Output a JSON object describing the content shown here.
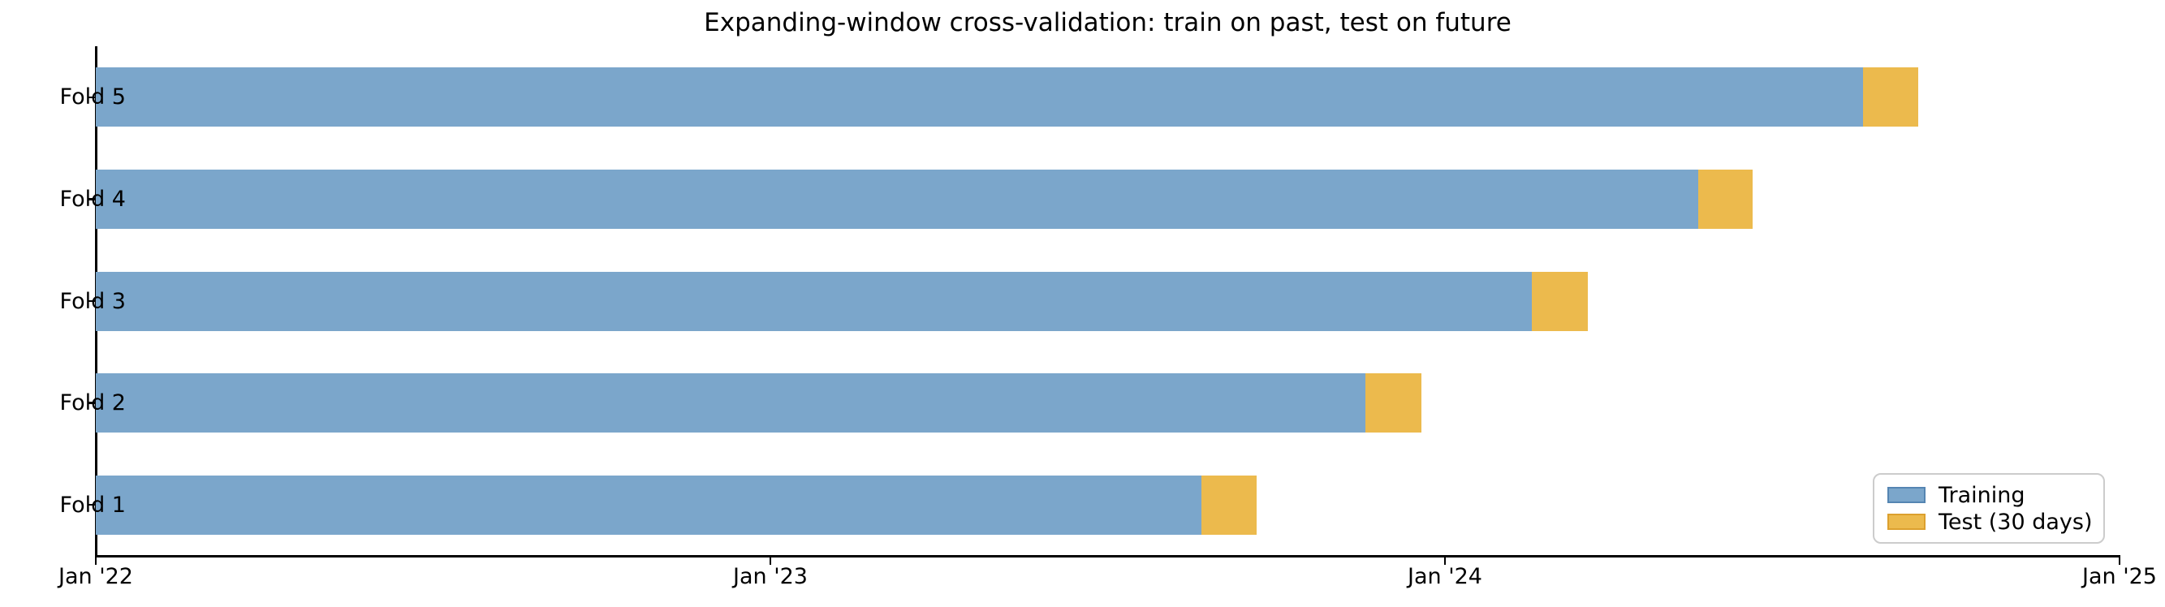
{
  "chart_data": {
    "type": "bar",
    "orientation": "horizontal",
    "stacked": true,
    "title": "Expanding-window cross-validation: train on past, test on future",
    "xlabel": "",
    "ylabel": "",
    "grid": false,
    "legend_position": "lower right",
    "x_axis": {
      "unit": "years since Jan 2022",
      "range_years": [
        0,
        3
      ],
      "ticks": [
        {
          "label": "Jan '22",
          "year": 0
        },
        {
          "label": "Jan '23",
          "year": 1
        },
        {
          "label": "Jan '24",
          "year": 2
        },
        {
          "label": "Jan '25",
          "year": 3
        }
      ]
    },
    "categories_top_to_bottom": [
      "Fold 5",
      "Fold 4",
      "Fold 3",
      "Fold 2",
      "Fold 1"
    ],
    "series": [
      {
        "name": "Training",
        "color": "#7BA6CB"
      },
      {
        "name": "Test (30 days)",
        "color": "#ECBA4D",
        "test_window_days": 30
      }
    ],
    "folds": [
      {
        "label": "Fold 5",
        "train_start": 0,
        "train_end": 2.62,
        "test_start": 2.62,
        "test_end": 2.702
      },
      {
        "label": "Fold 4",
        "train_start": 0,
        "train_end": 2.375,
        "test_start": 2.375,
        "test_end": 2.456
      },
      {
        "label": "Fold 3",
        "train_start": 0,
        "train_end": 2.129,
        "test_start": 2.129,
        "test_end": 2.212
      },
      {
        "label": "Fold 2",
        "train_start": 0,
        "train_end": 1.882,
        "test_start": 1.882,
        "test_end": 1.965
      },
      {
        "label": "Fold 1",
        "train_start": 0,
        "train_end": 1.639,
        "test_start": 1.639,
        "test_end": 1.721
      }
    ]
  },
  "legend": {
    "items": [
      {
        "label": "Training",
        "fill": "#7BA6CB",
        "edge": "#5585B2"
      },
      {
        "label": "Test (30 days)",
        "fill": "#ECBA4D",
        "edge": "#DCA02E"
      }
    ]
  },
  "colors": {
    "training_fill": "#7BA6CB",
    "test_fill": "#ECBA4D",
    "axis": "#000000",
    "background": "#ffffff",
    "legend_border": "#cccccc"
  }
}
